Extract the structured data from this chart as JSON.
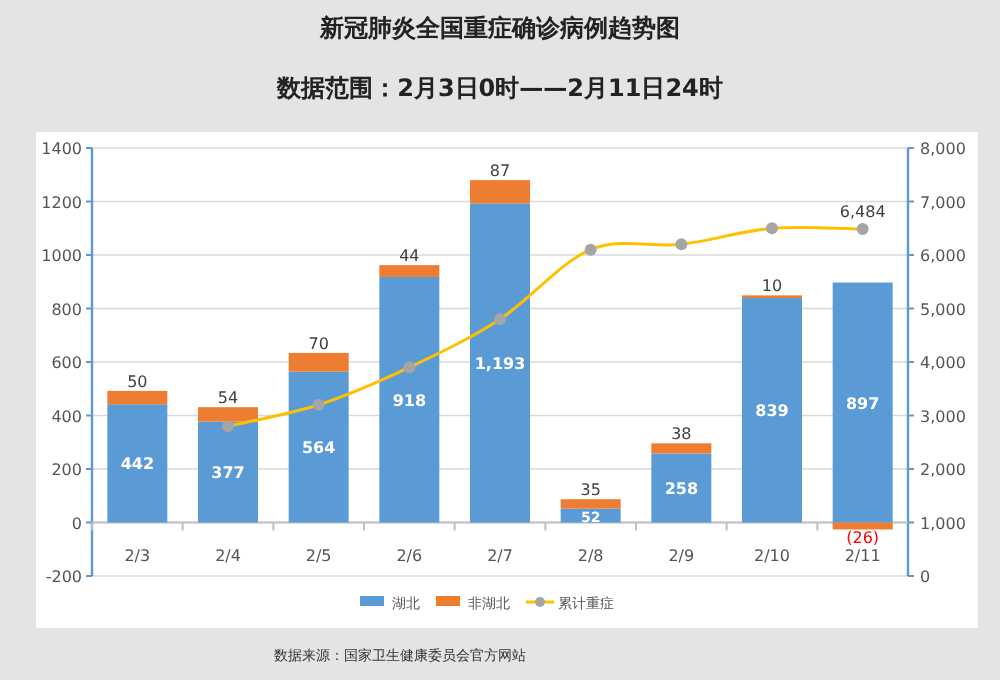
{
  "chart_data": {
    "type": "bar",
    "title": "新冠肺炎全国重症确诊病例趋势图",
    "subtitle": "数据范围：2月3日0时——2月11日24时",
    "categories": [
      "2/3",
      "2/4",
      "2/5",
      "2/6",
      "2/7",
      "2/8",
      "2/9",
      "2/10",
      "2/11"
    ],
    "stacked": true,
    "ylim": [
      -200,
      1400
    ],
    "yticks": [
      -200,
      0,
      200,
      400,
      600,
      800,
      1000,
      1200,
      1400
    ],
    "y2lim": [
      0,
      8000
    ],
    "y2ticks": [
      {
        "value": 0,
        "label": "0"
      },
      {
        "value": 1000,
        "label": "1,000"
      },
      {
        "value": 2000,
        "label": "2,000"
      },
      {
        "value": 3000,
        "label": "3,000"
      },
      {
        "value": 4000,
        "label": "4,000"
      },
      {
        "value": 5000,
        "label": "5,000"
      },
      {
        "value": 6000,
        "label": "6,000"
      },
      {
        "value": 7000,
        "label": "7,000"
      },
      {
        "value": 8000,
        "label": "8,000"
      }
    ],
    "grid": "y",
    "legend": "bottom",
    "series": [
      {
        "name": "湖北",
        "color": "#5b9bd5",
        "values": [
          442,
          377,
          564,
          918,
          1193,
          52,
          258,
          839,
          897
        ],
        "value_labels": [
          "442",
          "377",
          "564",
          "918",
          "1,193",
          "52",
          "258",
          "839",
          "897"
        ]
      },
      {
        "name": "非湖北",
        "color": "#ed7d31",
        "values": [
          50,
          54,
          70,
          44,
          87,
          35,
          38,
          10,
          -26
        ],
        "value_labels": [
          "50",
          "54",
          "70",
          "44",
          "87",
          "35",
          "38",
          "10",
          "(26)"
        ]
      },
      {
        "name": "累计重症",
        "type": "line",
        "axis": "y2",
        "color": "#ffc000",
        "marker": "circle",
        "values": [
          null,
          2800,
          3200,
          3900,
          4800,
          6100,
          6200,
          6500,
          6484
        ],
        "value_labels": [
          null,
          null,
          null,
          null,
          null,
          null,
          null,
          null,
          "6,484"
        ]
      }
    ],
    "annotations": [
      "数据来源：国家卫生健康委员会官方网站"
    ]
  }
}
